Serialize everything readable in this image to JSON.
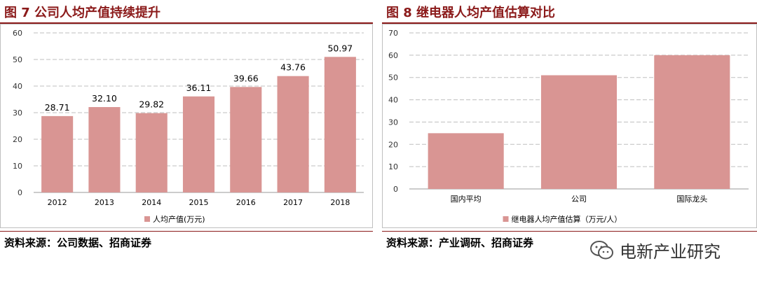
{
  "left": {
    "title": "图 7  公司人均产值持续提升",
    "source": "资料来源：公司数据、招商证券"
  },
  "right": {
    "title": "图 8  继电器人均产值估算对比",
    "source": "资料来源：产业调研、招商证券"
  },
  "watermark": {
    "text": "电新产业研究",
    "icon": "wechat-icon"
  },
  "colors": {
    "bar": "#d99593",
    "title": "#8b1a1a",
    "grid": "#bfbfbf"
  },
  "chart_data": [
    {
      "type": "bar",
      "categories": [
        "2012",
        "2013",
        "2014",
        "2015",
        "2016",
        "2017",
        "2018"
      ],
      "series": [
        {
          "name": "人均产值(万元)",
          "values": [
            28.71,
            32.1,
            29.82,
            36.11,
            39.66,
            43.76,
            50.97
          ]
        }
      ],
      "data_labels": [
        "28.71",
        "32.10",
        "29.82",
        "36.11",
        "39.66",
        "43.76",
        "50.97"
      ],
      "ylim": [
        0,
        60
      ],
      "yticks": [
        0,
        10,
        20,
        30,
        40,
        50,
        60
      ],
      "grid": "horizontal dashed",
      "legend_position": "bottom"
    },
    {
      "type": "bar",
      "categories": [
        "国内平均",
        "公司",
        "国际龙头"
      ],
      "series": [
        {
          "name": "继电器人均产值估算（万元/人）",
          "values": [
            25,
            51,
            60
          ]
        }
      ],
      "ylim": [
        0,
        70
      ],
      "yticks": [
        0,
        10,
        20,
        30,
        40,
        50,
        60,
        70
      ],
      "grid": "horizontal dashed",
      "legend_position": "bottom"
    }
  ]
}
